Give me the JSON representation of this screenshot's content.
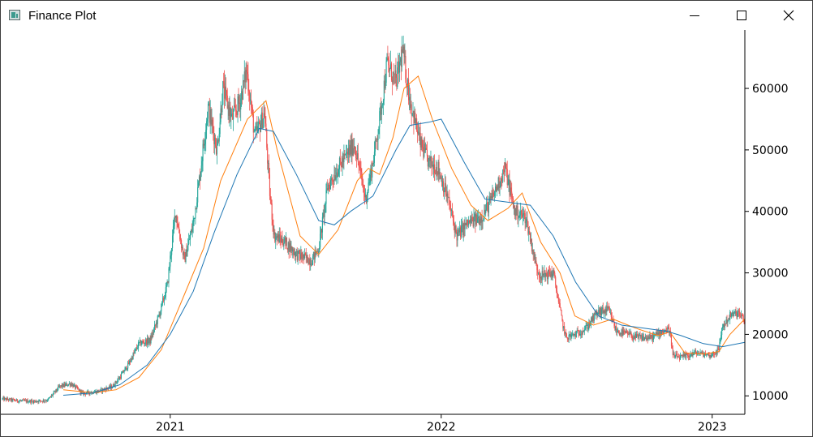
{
  "window": {
    "title": "Finance Plot",
    "icons": {
      "app": "finance-plot-app-icon",
      "minimize": "minimize-icon",
      "maximize": "maximize-icon",
      "close": "close-icon"
    }
  },
  "chart_data": {
    "type": "candlestick",
    "title": "",
    "xlabel": "",
    "ylabel": "",
    "x_range": [
      "2020-05-20",
      "2023-02-14"
    ],
    "ylim": [
      7000,
      69500
    ],
    "x_ticks": [
      {
        "date": "2021-01-01",
        "label": "2021"
      },
      {
        "date": "2022-01-01",
        "label": "2022"
      },
      {
        "date": "2023-01-01",
        "label": "2023"
      }
    ],
    "y_ticks": [
      10000,
      20000,
      30000,
      40000,
      50000,
      60000
    ],
    "y_axis_position": "right",
    "grid": false,
    "legend": "none",
    "colors": {
      "up": "#26a69a",
      "down": "#ef5350",
      "ma_short": "#ff7f0e",
      "ma_long": "#1f77b4"
    },
    "close_series": {
      "x": [
        "2020-05-20",
        "2020-06-10",
        "2020-07-01",
        "2020-07-20",
        "2020-08-05",
        "2020-08-20",
        "2020-09-05",
        "2020-09-25",
        "2020-10-15",
        "2020-10-25",
        "2020-11-05",
        "2020-11-20",
        "2020-12-05",
        "2020-12-18",
        "2020-12-28",
        "2021-01-08",
        "2021-01-20",
        "2021-02-01",
        "2021-02-10",
        "2021-02-21",
        "2021-03-05",
        "2021-03-13",
        "2021-03-25",
        "2021-04-05",
        "2021-04-14",
        "2021-04-25",
        "2021-05-08",
        "2021-05-15",
        "2021-05-21",
        "2021-06-05",
        "2021-06-20",
        "2021-07-10",
        "2021-07-20",
        "2021-08-01",
        "2021-08-15",
        "2021-09-06",
        "2021-09-21",
        "2021-10-01",
        "2021-10-10",
        "2021-10-20",
        "2021-11-01",
        "2021-11-10",
        "2021-11-20",
        "2021-12-04",
        "2021-12-15",
        "2021-12-28",
        "2022-01-10",
        "2022-01-22",
        "2022-02-05",
        "2022-02-24",
        "2022-03-10",
        "2022-03-28",
        "2022-04-10",
        "2022-04-25",
        "2022-05-09",
        "2022-05-15",
        "2022-06-01",
        "2022-06-13",
        "2022-06-18",
        "2022-07-01",
        "2022-07-15",
        "2022-07-30",
        "2022-08-14",
        "2022-08-25",
        "2022-09-10",
        "2022-09-20",
        "2022-10-10",
        "2022-10-25",
        "2022-11-05",
        "2022-11-09",
        "2022-11-20",
        "2022-12-10",
        "2022-12-30",
        "2023-01-10",
        "2023-01-14",
        "2023-01-25",
        "2023-02-05",
        "2023-02-14"
      ],
      "y": [
        9500,
        9200,
        9100,
        9300,
        11500,
        12000,
        10400,
        10700,
        11500,
        13000,
        15000,
        18500,
        19000,
        23500,
        28000,
        40000,
        32000,
        38000,
        46000,
        57000,
        50000,
        60000,
        55000,
        58000,
        63000,
        52000,
        56000,
        43000,
        36000,
        35000,
        33000,
        32000,
        34000,
        44000,
        47000,
        51000,
        42000,
        48000,
        55000,
        64000,
        61000,
        66000,
        58000,
        51000,
        48000,
        47000,
        42000,
        36000,
        38000,
        39000,
        42000,
        47000,
        40000,
        39000,
        31000,
        29500,
        30000,
        22000,
        19500,
        20000,
        21000,
        23500,
        24000,
        20500,
        20000,
        19500,
        19400,
        20500,
        20800,
        16500,
        16200,
        17000,
        16600,
        17500,
        21000,
        23000,
        23500,
        22000
      ]
    },
    "ma_short": {
      "name": "",
      "x": [
        "2020-08-10",
        "2020-09-20",
        "2020-10-20",
        "2020-11-20",
        "2020-12-20",
        "2021-01-15",
        "2021-02-15",
        "2021-03-10",
        "2021-04-15",
        "2021-05-10",
        "2021-05-25",
        "2021-06-25",
        "2021-07-20",
        "2021-08-15",
        "2021-09-10",
        "2021-09-25",
        "2021-10-10",
        "2021-10-28",
        "2021-11-12",
        "2021-12-01",
        "2021-12-20",
        "2022-01-15",
        "2022-02-10",
        "2022-03-05",
        "2022-04-01",
        "2022-04-20",
        "2022-05-15",
        "2022-06-10",
        "2022-06-30",
        "2022-07-25",
        "2022-08-20",
        "2022-09-20",
        "2022-10-20",
        "2022-11-05",
        "2022-11-25",
        "2022-12-20",
        "2023-01-10",
        "2023-01-25",
        "2023-02-14"
      ],
      "y": [
        11000,
        10500,
        11000,
        13000,
        17500,
        25000,
        34000,
        45000,
        55000,
        58000,
        50000,
        36000,
        33000,
        37000,
        45000,
        47000,
        46000,
        52000,
        60000,
        62000,
        55000,
        47000,
        41000,
        38500,
        40500,
        43000,
        35000,
        30000,
        23000,
        21500,
        22500,
        21000,
        19800,
        20400,
        17000,
        16800,
        17200,
        20000,
        22500
      ]
    },
    "ma_long": {
      "name": "",
      "x": [
        "2020-08-10",
        "2020-09-20",
        "2020-10-25",
        "2020-12-01",
        "2021-01-01",
        "2021-02-01",
        "2021-03-01",
        "2021-04-01",
        "2021-05-01",
        "2021-05-20",
        "2021-06-20",
        "2021-07-20",
        "2021-08-10",
        "2021-09-01",
        "2021-10-01",
        "2021-11-01",
        "2021-11-20",
        "2021-12-15",
        "2022-01-01",
        "2022-02-01",
        "2022-03-01",
        "2022-04-01",
        "2022-05-01",
        "2022-06-01",
        "2022-07-01",
        "2022-08-01",
        "2022-09-01",
        "2022-10-01",
        "2022-11-01",
        "2022-11-20",
        "2022-12-20",
        "2023-01-15",
        "2023-02-14"
      ],
      "y": [
        10100,
        10500,
        11800,
        15000,
        20000,
        27000,
        36500,
        46000,
        53500,
        53000,
        46000,
        38500,
        37800,
        40000,
        42500,
        50000,
        54000,
        54500,
        55000,
        48000,
        42000,
        41500,
        41000,
        36000,
        28500,
        23000,
        21500,
        21000,
        20500,
        19800,
        18500,
        18000,
        18700
      ]
    }
  }
}
